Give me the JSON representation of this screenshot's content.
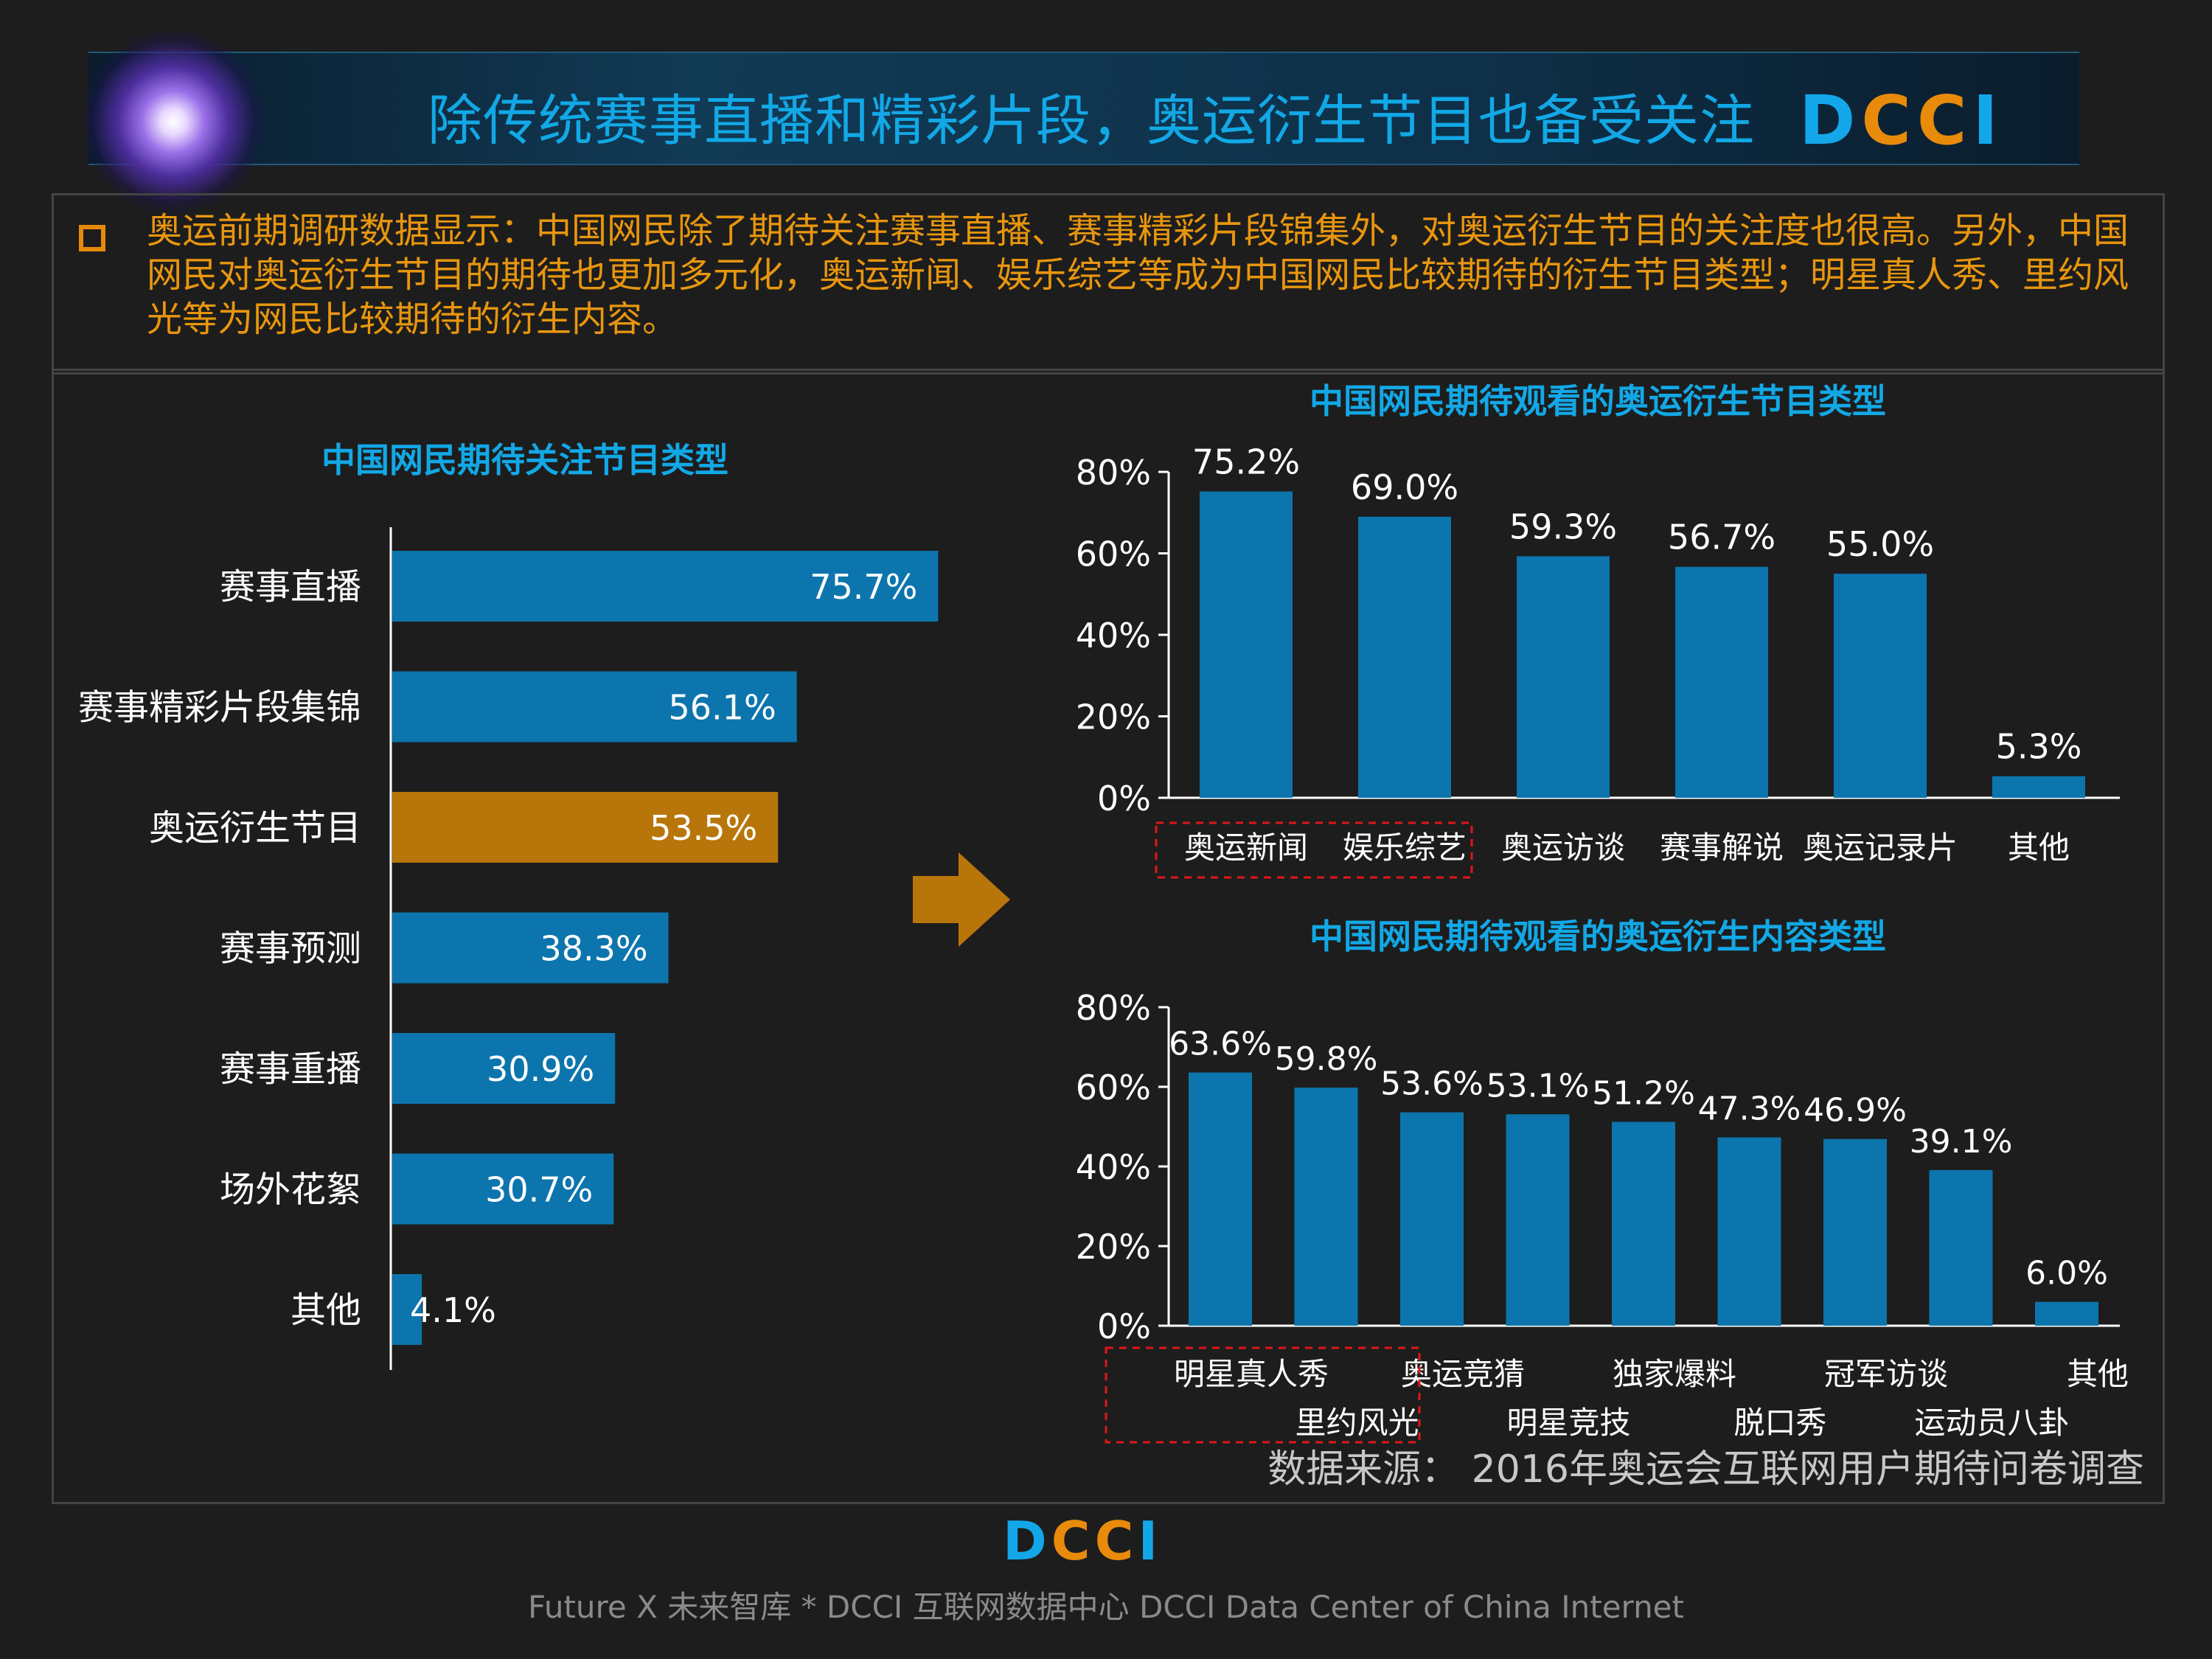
{
  "header": {
    "title": "除传统赛事直播和精彩片段，奥运衍生节目也备受关注",
    "logo": "DCCI"
  },
  "intro": {
    "text": "奥运前期调研数据显示：中国网民除了期待关注赛事直播、赛事精彩片段锦集外，对奥运衍生节目的关注度也很高。另外，中国网民对奥运衍生节目的期待也更加多元化，奥运新闻、娱乐综艺等成为中国网民比较期待的衍生节目类型；明星真人秀、里约风光等为网民比较期待的衍生内容。"
  },
  "colors": {
    "bar": "#0c75ad",
    "highlight": "#b8760a",
    "accent_text": "#12a8e6",
    "intro_text": "#e8960e",
    "marker": "#e0161a"
  },
  "chart_data": [
    {
      "type": "bar",
      "orientation": "horizontal",
      "title": "中国网民期待关注节目类型",
      "categories": [
        "赛事直播",
        "赛事精彩片段集锦",
        "奥运衍生节目",
        "赛事预测",
        "赛事重播",
        "场外花絮",
        "其他"
      ],
      "values": [
        75.7,
        56.1,
        53.5,
        38.3,
        30.9,
        30.7,
        4.1
      ],
      "labels": [
        "75.7%",
        "56.1%",
        "53.5%",
        "38.3%",
        "30.9%",
        "30.7%",
        "4.1%"
      ],
      "highlight_index": 2,
      "xlim": [
        0,
        100
      ]
    },
    {
      "type": "bar",
      "title": "中国网民期待观看的奥运衍生节目类型",
      "categories": [
        "奥运新闻",
        "娱乐综艺",
        "奥运访谈",
        "赛事解说",
        "奥运记录片",
        "其他"
      ],
      "values": [
        75.2,
        69.0,
        59.3,
        56.7,
        55.0,
        5.3
      ],
      "labels": [
        "75.2%",
        "69.0%",
        "59.3%",
        "56.7%",
        "55.0%",
        "5.3%"
      ],
      "yticks": [
        "0%",
        "20%",
        "40%",
        "60%",
        "80%"
      ],
      "ylim": [
        0,
        80
      ],
      "marked_categories": [
        0,
        1
      ]
    },
    {
      "type": "bar",
      "title": "中国网民期待观看的奥运衍生内容类型",
      "categories": [
        "明星真人秀",
        "里约风光",
        "奥运竞猜",
        "明星竞技",
        "独家爆料",
        "脱口秀",
        "冠军访谈",
        "运动员八卦",
        "其他"
      ],
      "values": [
        63.6,
        59.8,
        53.6,
        53.1,
        51.2,
        47.3,
        46.9,
        39.1,
        6.0
      ],
      "labels": [
        "63.6%",
        "59.8%",
        "53.6%",
        "53.1%",
        "51.2%",
        "47.3%",
        "46.9%",
        "39.1%",
        "6.0%"
      ],
      "yticks": [
        "0%",
        "20%",
        "40%",
        "60%",
        "80%"
      ],
      "ylim": [
        0,
        80
      ],
      "marked_categories": [
        0,
        1
      ]
    }
  ],
  "source": "数据来源： 2016年奥运会互联网用户期待问卷调查",
  "footer": "Future X 未来智库 * DCCI 互联网数据中心 DCCI Data Center of China Internet"
}
